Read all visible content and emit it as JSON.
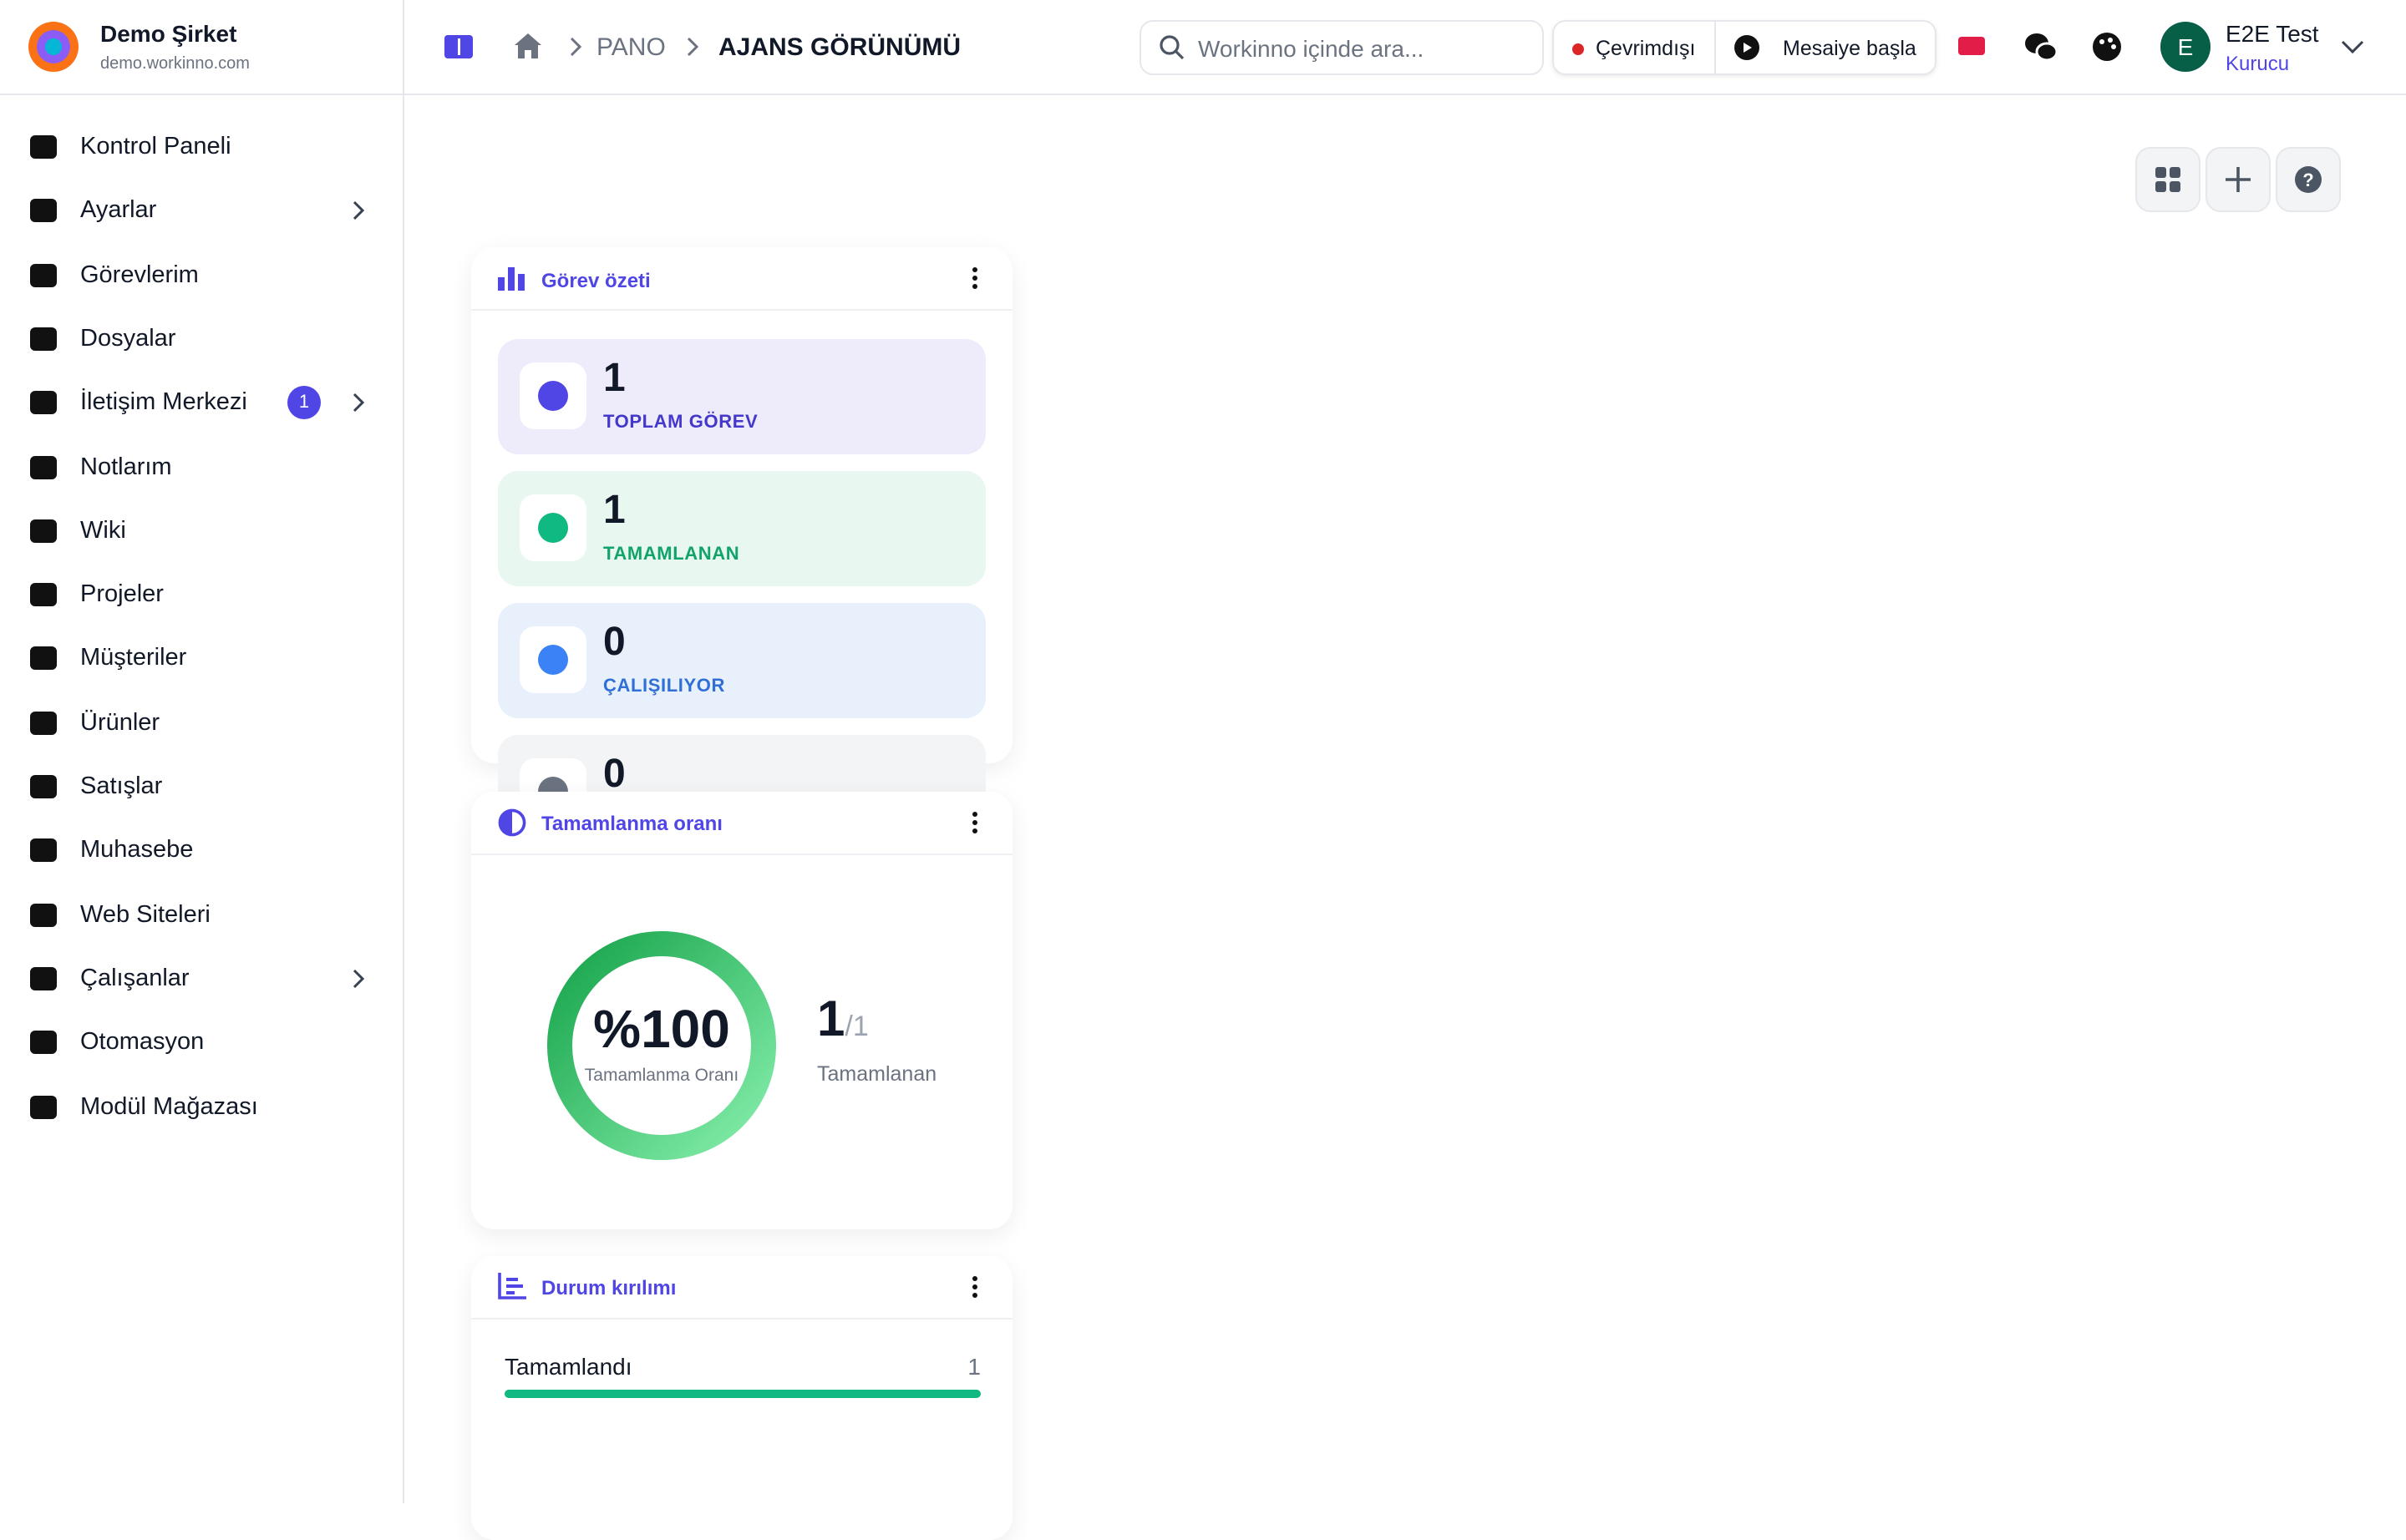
{
  "header": {
    "company": "Demo Şirket",
    "domain": "demo.workinno.com",
    "breadcrumb": [
      "PANO",
      "AJANS GÖRÜNÜMÜ"
    ],
    "search_placeholder": "Workinno içinde ara...",
    "status": "Çevrimdışı",
    "shift_button": "Mesaiye başla",
    "user_name": "E2E Test",
    "user_role": "Kurucu",
    "avatar_letter": "E"
  },
  "sidebar": [
    {
      "label": "Kontrol Paneli"
    },
    {
      "label": "Ayarlar",
      "submenu": true
    },
    {
      "label": "Görevlerim"
    },
    {
      "label": "Dosyalar"
    },
    {
      "label": "İletişim Merkezi",
      "badge": 1,
      "submenu": true
    },
    {
      "label": "Notlarım"
    },
    {
      "label": "Wiki"
    },
    {
      "label": "Projeler"
    },
    {
      "label": "Müşteriler"
    },
    {
      "label": "Ürünler"
    },
    {
      "label": "Satışlar"
    },
    {
      "label": "Muhasebe"
    },
    {
      "label": "Web Siteleri"
    },
    {
      "label": "Çalışanlar",
      "submenu": true
    },
    {
      "label": "Otomasyon"
    },
    {
      "label": "Modül Mağazası"
    }
  ],
  "widgets": {
    "summary": {
      "title": "Görev özeti",
      "stats": [
        {
          "value": 1,
          "label": "TOPLAM GÖREV"
        },
        {
          "value": 1,
          "label": "TAMAMLANAN"
        },
        {
          "value": 0,
          "label": "ÇALIŞILIYOR"
        },
        {
          "value": 0
        }
      ]
    },
    "completion": {
      "title": "Tamamlanma oranı",
      "rate": {
        "value": 100,
        "label": "%100"
      },
      "rate_caption": "Tamamlanma Oranı",
      "done": 1,
      "total": {
        "value": 1,
        "label": "/1"
      },
      "done_caption": "Tamamlanan"
    },
    "breakdown": {
      "title": "Durum kırılımı",
      "rows": [
        {
          "label": "Tamamlandı",
          "value": 1
        }
      ]
    }
  }
}
